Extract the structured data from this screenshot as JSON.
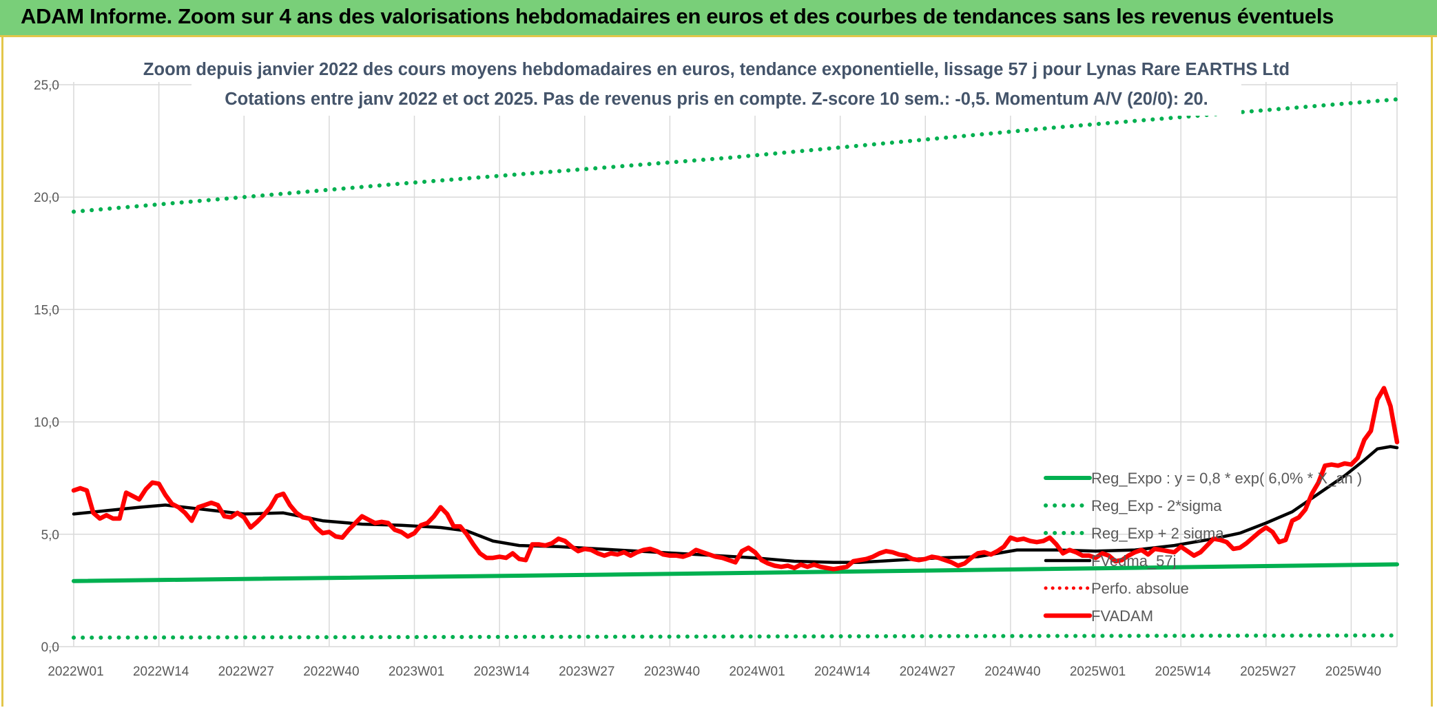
{
  "banner": {
    "title": "ADAM Informe. Zoom sur 4 ans des valorisations hebdomadaires en euros et des courbes de tendances sans les revenus éventuels"
  },
  "chart_data": {
    "type": "line",
    "title": "Zoom depuis janvier 2022 des cours moyens hebdomadaires en euros, tendance exponentielle, lissage 57 j pour Lynas Rare EARTHS Ltd",
    "subtitle": "Cotations entre janv 2022 et oct 2025. Pas de revenus pris en compte. Z-score 10 sem.: -0,5. Momentum A/V (20/0): 20.",
    "xlabel": "",
    "ylabel": "",
    "ylim": [
      0,
      25
    ],
    "yticks": [
      "0,0",
      "5,0",
      "10,0",
      "15,0",
      "20,0",
      "25,0"
    ],
    "ytick_values": [
      0,
      5,
      10,
      15,
      20,
      25
    ],
    "xticks": [
      "2022W01",
      "2022W14",
      "2022W27",
      "2022W40",
      "2023W01",
      "2023W14",
      "2023W27",
      "2023W40",
      "2024W01",
      "2024W14",
      "2024W27",
      "2024W40",
      "2025W01",
      "2025W14",
      "2025W27",
      "2025W40"
    ],
    "xtick_weeks": [
      0,
      13,
      26,
      39,
      52,
      65,
      78,
      91,
      104,
      117,
      130,
      143,
      156,
      169,
      182,
      195
    ],
    "week_count": 202,
    "grid": true,
    "legend_position": "right",
    "colors": {
      "reg_expo": "#00b050",
      "reg_minus": "#00b050",
      "reg_plus": "#00b050",
      "fvmm": "#000000",
      "perfo": "#ff0000",
      "fvadam": "#ff0000",
      "grid": "#d9d9d9",
      "axis_text": "#595959",
      "title_text": "#404040"
    },
    "series": [
      {
        "name": "Reg_Expo : y = 0,8 * exp( 6,0% * X_an )",
        "style": "solid",
        "points": [
          [
            0,
            2.92
          ],
          [
            100,
            3.27
          ],
          [
            202,
            3.66
          ]
        ]
      },
      {
        "name": "Reg_Exp - 2*sigma",
        "style": "dotted",
        "points": [
          [
            0,
            0.4
          ],
          [
            100,
            0.45
          ],
          [
            202,
            0.5
          ]
        ]
      },
      {
        "name": "Reg_Exp + 2 sigma",
        "style": "dotted",
        "points": [
          [
            0,
            19.35
          ],
          [
            50,
            20.6
          ],
          [
            100,
            21.75
          ],
          [
            150,
            23.1
          ],
          [
            202,
            24.35
          ]
        ]
      },
      {
        "name": "FVedma_57j",
        "style": "solid-thin",
        "points": [
          [
            0,
            5.9
          ],
          [
            5,
            6.05
          ],
          [
            10,
            6.2
          ],
          [
            14,
            6.3
          ],
          [
            20,
            6.1
          ],
          [
            26,
            5.9
          ],
          [
            32,
            5.95
          ],
          [
            38,
            5.6
          ],
          [
            44,
            5.45
          ],
          [
            50,
            5.4
          ],
          [
            56,
            5.3
          ],
          [
            60,
            5.15
          ],
          [
            64,
            4.7
          ],
          [
            68,
            4.5
          ],
          [
            74,
            4.45
          ],
          [
            80,
            4.35
          ],
          [
            86,
            4.25
          ],
          [
            92,
            4.15
          ],
          [
            98,
            4.05
          ],
          [
            104,
            3.95
          ],
          [
            110,
            3.8
          ],
          [
            116,
            3.75
          ],
          [
            120,
            3.75
          ],
          [
            126,
            3.85
          ],
          [
            132,
            3.95
          ],
          [
            138,
            4.0
          ],
          [
            144,
            4.3
          ],
          [
            150,
            4.3
          ],
          [
            156,
            4.25
          ],
          [
            162,
            4.3
          ],
          [
            168,
            4.5
          ],
          [
            174,
            4.8
          ],
          [
            178,
            5.05
          ],
          [
            182,
            5.5
          ],
          [
            186,
            6.0
          ],
          [
            190,
            6.8
          ],
          [
            194,
            7.6
          ],
          [
            197,
            8.3
          ],
          [
            199,
            8.8
          ],
          [
            201,
            8.9
          ],
          [
            202,
            8.85
          ]
        ]
      },
      {
        "name": "Perfo. absolue",
        "style": "dotted",
        "points": []
      },
      {
        "name": "FVADAM",
        "style": "solid-thick",
        "points": [
          [
            0,
            6.95
          ],
          [
            1,
            7.05
          ],
          [
            2,
            6.95
          ],
          [
            3,
            5.95
          ],
          [
            4,
            5.7
          ],
          [
            5,
            5.85
          ],
          [
            6,
            5.7
          ],
          [
            7,
            5.7
          ],
          [
            8,
            6.85
          ],
          [
            9,
            6.7
          ],
          [
            10,
            6.55
          ],
          [
            11,
            7.0
          ],
          [
            12,
            7.3
          ],
          [
            13,
            7.25
          ],
          [
            14,
            6.75
          ],
          [
            15,
            6.35
          ],
          [
            16,
            6.2
          ],
          [
            17,
            5.95
          ],
          [
            18,
            5.6
          ],
          [
            19,
            6.2
          ],
          [
            20,
            6.3
          ],
          [
            21,
            6.4
          ],
          [
            22,
            6.3
          ],
          [
            23,
            5.8
          ],
          [
            24,
            5.75
          ],
          [
            25,
            5.95
          ],
          [
            26,
            5.75
          ],
          [
            27,
            5.3
          ],
          [
            28,
            5.55
          ],
          [
            29,
            5.85
          ],
          [
            30,
            6.2
          ],
          [
            31,
            6.7
          ],
          [
            32,
            6.8
          ],
          [
            33,
            6.3
          ],
          [
            34,
            5.95
          ],
          [
            35,
            5.75
          ],
          [
            36,
            5.7
          ],
          [
            37,
            5.3
          ],
          [
            38,
            5.05
          ],
          [
            39,
            5.1
          ],
          [
            40,
            4.9
          ],
          [
            41,
            4.85
          ],
          [
            42,
            5.2
          ],
          [
            43,
            5.5
          ],
          [
            44,
            5.8
          ],
          [
            45,
            5.65
          ],
          [
            46,
            5.5
          ],
          [
            47,
            5.55
          ],
          [
            48,
            5.5
          ],
          [
            49,
            5.2
          ],
          [
            50,
            5.1
          ],
          [
            51,
            4.9
          ],
          [
            52,
            5.05
          ],
          [
            53,
            5.4
          ],
          [
            54,
            5.5
          ],
          [
            55,
            5.8
          ],
          [
            56,
            6.2
          ],
          [
            57,
            5.9
          ],
          [
            58,
            5.35
          ],
          [
            59,
            5.35
          ],
          [
            60,
            5.0
          ],
          [
            61,
            4.55
          ],
          [
            62,
            4.15
          ],
          [
            63,
            3.95
          ],
          [
            64,
            3.95
          ],
          [
            65,
            4.0
          ],
          [
            66,
            3.95
          ],
          [
            67,
            4.15
          ],
          [
            68,
            3.9
          ],
          [
            69,
            3.85
          ],
          [
            70,
            4.55
          ],
          [
            71,
            4.55
          ],
          [
            72,
            4.5
          ],
          [
            73,
            4.6
          ],
          [
            74,
            4.8
          ],
          [
            75,
            4.7
          ],
          [
            76,
            4.45
          ],
          [
            77,
            4.25
          ],
          [
            78,
            4.35
          ],
          [
            79,
            4.3
          ],
          [
            80,
            4.15
          ],
          [
            81,
            4.05
          ],
          [
            82,
            4.15
          ],
          [
            83,
            4.1
          ],
          [
            84,
            4.2
          ],
          [
            85,
            4.05
          ],
          [
            86,
            4.2
          ],
          [
            87,
            4.3
          ],
          [
            88,
            4.35
          ],
          [
            89,
            4.25
          ],
          [
            90,
            4.1
          ],
          [
            91,
            4.05
          ],
          [
            92,
            4.05
          ],
          [
            93,
            4.0
          ],
          [
            94,
            4.1
          ],
          [
            95,
            4.3
          ],
          [
            96,
            4.2
          ],
          [
            97,
            4.1
          ],
          [
            98,
            4.0
          ],
          [
            99,
            3.95
          ],
          [
            100,
            3.85
          ],
          [
            101,
            3.75
          ],
          [
            102,
            4.25
          ],
          [
            103,
            4.4
          ],
          [
            104,
            4.2
          ],
          [
            105,
            3.85
          ],
          [
            106,
            3.7
          ],
          [
            107,
            3.6
          ],
          [
            108,
            3.55
          ],
          [
            109,
            3.6
          ],
          [
            110,
            3.5
          ],
          [
            111,
            3.65
          ],
          [
            112,
            3.55
          ],
          [
            113,
            3.65
          ],
          [
            114,
            3.55
          ],
          [
            115,
            3.5
          ],
          [
            116,
            3.45
          ],
          [
            117,
            3.5
          ],
          [
            118,
            3.55
          ],
          [
            119,
            3.8
          ],
          [
            120,
            3.85
          ],
          [
            121,
            3.9
          ],
          [
            122,
            4.0
          ],
          [
            123,
            4.15
          ],
          [
            124,
            4.25
          ],
          [
            125,
            4.2
          ],
          [
            126,
            4.1
          ],
          [
            127,
            4.05
          ],
          [
            128,
            3.9
          ],
          [
            129,
            3.85
          ],
          [
            130,
            3.9
          ],
          [
            131,
            4.0
          ],
          [
            132,
            3.95
          ],
          [
            133,
            3.85
          ],
          [
            134,
            3.75
          ],
          [
            135,
            3.6
          ],
          [
            136,
            3.7
          ],
          [
            137,
            3.95
          ],
          [
            138,
            4.15
          ],
          [
            139,
            4.2
          ],
          [
            140,
            4.1
          ],
          [
            141,
            4.25
          ],
          [
            142,
            4.45
          ],
          [
            143,
            4.85
          ],
          [
            144,
            4.75
          ],
          [
            145,
            4.8
          ],
          [
            146,
            4.7
          ],
          [
            147,
            4.65
          ],
          [
            148,
            4.7
          ],
          [
            149,
            4.85
          ],
          [
            150,
            4.55
          ],
          [
            151,
            4.15
          ],
          [
            152,
            4.3
          ],
          [
            153,
            4.2
          ],
          [
            154,
            4.05
          ],
          [
            155,
            4.05
          ],
          [
            156,
            3.95
          ],
          [
            157,
            4.15
          ],
          [
            158,
            4.05
          ],
          [
            159,
            3.8
          ],
          [
            160,
            3.85
          ],
          [
            161,
            4.05
          ],
          [
            162,
            4.2
          ],
          [
            163,
            4.3
          ],
          [
            164,
            4.1
          ],
          [
            165,
            4.35
          ],
          [
            166,
            4.3
          ],
          [
            167,
            4.25
          ],
          [
            168,
            4.2
          ],
          [
            169,
            4.45
          ],
          [
            170,
            4.25
          ],
          [
            171,
            4.05
          ],
          [
            172,
            4.2
          ],
          [
            173,
            4.5
          ],
          [
            174,
            4.8
          ],
          [
            175,
            4.75
          ],
          [
            176,
            4.65
          ],
          [
            177,
            4.35
          ],
          [
            178,
            4.4
          ],
          [
            179,
            4.6
          ],
          [
            180,
            4.85
          ],
          [
            181,
            5.1
          ],
          [
            182,
            5.3
          ],
          [
            183,
            5.1
          ],
          [
            184,
            4.65
          ],
          [
            185,
            4.75
          ],
          [
            186,
            5.6
          ],
          [
            187,
            5.75
          ],
          [
            188,
            6.1
          ],
          [
            189,
            6.8
          ],
          [
            190,
            7.3
          ],
          [
            191,
            8.05
          ],
          [
            192,
            8.1
          ],
          [
            193,
            8.05
          ],
          [
            194,
            8.15
          ],
          [
            195,
            8.1
          ],
          [
            196,
            8.4
          ],
          [
            197,
            9.2
          ],
          [
            198,
            9.6
          ],
          [
            199,
            11.0
          ],
          [
            200,
            11.5
          ],
          [
            201,
            10.7
          ],
          [
            202,
            9.1
          ]
        ]
      }
    ]
  }
}
